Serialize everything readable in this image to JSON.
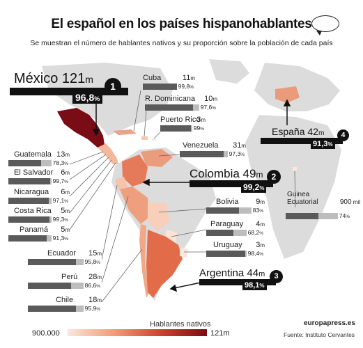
{
  "title": "El español en los países hispanohablantes",
  "subtitle": "Se muestran el número de hablantes nativos y su proporción sobre la población de cada país",
  "colors": {
    "legend_min": "#fbe7dc",
    "legend_max": "#7a0c16",
    "land": "#dcdcdc",
    "ocean": "#ffffff",
    "bar_dark": "#5a5a5a",
    "bar_light": "#bdbdbd"
  },
  "countries": [
    {
      "key": "mexico",
      "name": "México",
      "speakers": "121",
      "unit": "m",
      "pct": "96,8",
      "pct_unit": "%",
      "rank": "1"
    },
    {
      "key": "colombia",
      "name": "Colombia",
      "speakers": "49",
      "unit": "m",
      "pct": "99,2",
      "pct_unit": "%",
      "rank": "2"
    },
    {
      "key": "argentina",
      "name": "Argentina",
      "speakers": "44",
      "unit": "m",
      "pct": "98,1",
      "pct_unit": "%",
      "rank": "3"
    },
    {
      "key": "espana",
      "name": "España",
      "speakers": "42",
      "unit": "m",
      "pct": "91,3",
      "pct_unit": "%",
      "rank": "4"
    },
    {
      "key": "cuba",
      "name": "Cuba",
      "speakers": "11",
      "unit": "m",
      "pct": "99,8",
      "pct_unit": "%"
    },
    {
      "key": "rdominicana",
      "name": "R. Dominicana",
      "speakers": "10",
      "unit": "m",
      "pct": "97,6",
      "pct_unit": "%"
    },
    {
      "key": "puertorico",
      "name": "Puerto Rico",
      "speakers": "3",
      "unit": "m",
      "pct": "99",
      "pct_unit": "%"
    },
    {
      "key": "venezuela",
      "name": "Venezuela",
      "speakers": "31",
      "unit": "m",
      "pct": "97,3",
      "pct_unit": "%"
    },
    {
      "key": "guatemala",
      "name": "Guatemala",
      "speakers": "13",
      "unit": "m",
      "pct": "78,3",
      "pct_unit": "%"
    },
    {
      "key": "elsalvador",
      "name": "El Salvador",
      "speakers": "6",
      "unit": "m",
      "pct": "99,7",
      "pct_unit": "%"
    },
    {
      "key": "nicaragua",
      "name": "Nicaragua",
      "speakers": "6",
      "unit": "m",
      "pct": "97,1",
      "pct_unit": "%"
    },
    {
      "key": "costarica",
      "name": "Costa Rica",
      "speakers": "5",
      "unit": "m",
      "pct": "99,3",
      "pct_unit": "%"
    },
    {
      "key": "panama",
      "name": "Panamá",
      "speakers": "5",
      "unit": "m",
      "pct": "91,3",
      "pct_unit": "%"
    },
    {
      "key": "ecuador",
      "name": "Ecuador",
      "speakers": "15",
      "unit": "m",
      "pct": "95,8",
      "pct_unit": "%"
    },
    {
      "key": "peru",
      "name": "Perú",
      "speakers": "28",
      "unit": "m",
      "pct": "86,6",
      "pct_unit": "%"
    },
    {
      "key": "chile",
      "name": "Chile",
      "speakers": "18",
      "unit": "m",
      "pct": "95,9",
      "pct_unit": "%"
    },
    {
      "key": "bolivia",
      "name": "Bolivia",
      "speakers": "9",
      "unit": "m",
      "pct": "83",
      "pct_unit": "%"
    },
    {
      "key": "paraguay",
      "name": "Paraguay",
      "speakers": "4",
      "unit": "m",
      "pct": "68,2",
      "pct_unit": "%"
    },
    {
      "key": "uruguay",
      "name": "Uruguay",
      "speakers": "3",
      "unit": "m",
      "pct": "98,4",
      "pct_unit": "%"
    },
    {
      "key": "guinea",
      "name": "Guinea Ecuatorial",
      "speakers": "900",
      "unit": " mil",
      "pct": "74",
      "pct_unit": "%"
    }
  ],
  "legend": {
    "title": "Hablantes nativos",
    "min": "900.000",
    "max": "121m"
  },
  "brand": "europapress.es",
  "source": "Fuente: Instituto Cervantes"
}
